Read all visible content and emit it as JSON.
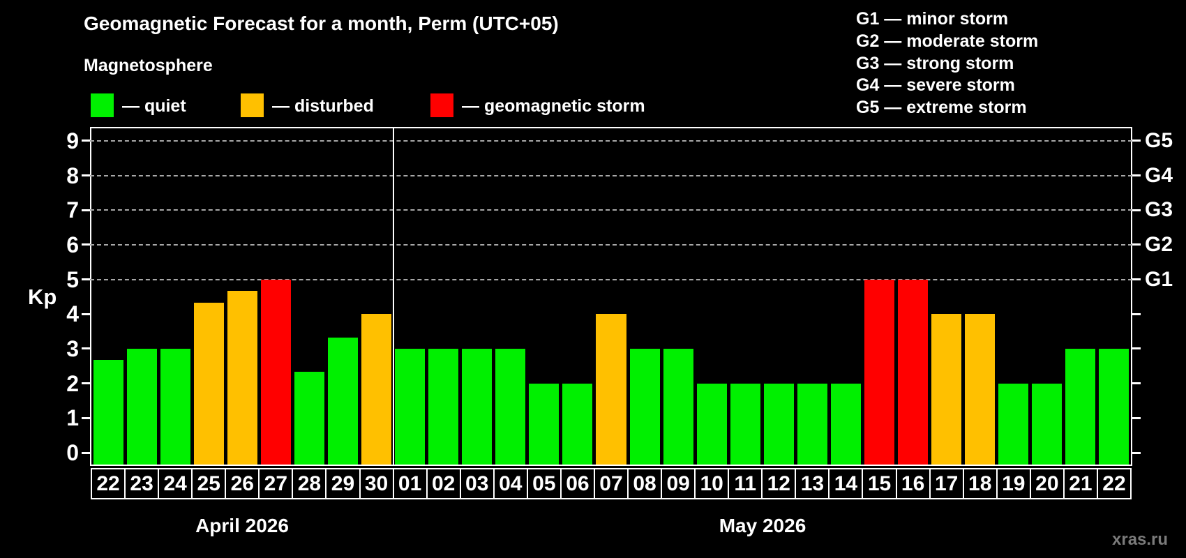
{
  "title": "Geomagnetic Forecast for a month, Perm (UTC+05)",
  "subtitle": "Magnetosphere",
  "legend": {
    "items": [
      {
        "key": "quiet",
        "label": "— quiet",
        "color": "#00f000"
      },
      {
        "key": "disturbed",
        "label": "— disturbed",
        "color": "#ffc000"
      },
      {
        "key": "storm",
        "label": "— geomagnetic storm",
        "color": "#ff0000"
      }
    ]
  },
  "storm_scale": {
    "items": [
      "G1 — minor storm",
      "G2 — moderate storm",
      "G3 — strong storm",
      "G4 — severe storm",
      "G5 — extreme storm"
    ]
  },
  "y_axis": {
    "label": "Kp",
    "ticks": [
      0,
      1,
      2,
      3,
      4,
      5,
      6,
      7,
      8,
      9
    ]
  },
  "right_axis": {
    "labels": [
      {
        "text": "G1",
        "kp": 5
      },
      {
        "text": "G2",
        "kp": 6
      },
      {
        "text": "G3",
        "kp": 7
      },
      {
        "text": "G4",
        "kp": 8
      },
      {
        "text": "G5",
        "kp": 9
      }
    ]
  },
  "watermark": "xras.ru",
  "colors": {
    "background": "#000000",
    "axis": "#ffffff",
    "grid": "#a8a8a8",
    "quiet": "#00f000",
    "disturbed": "#ffc000",
    "storm": "#ff0000",
    "watermark_text": "#7b7b7b"
  },
  "chart_data": {
    "type": "bar",
    "title": "Geomagnetic Forecast for a month, Perm (UTC+05)",
    "xlabel": "",
    "ylabel": "Kp",
    "ylim": [
      0,
      9
    ],
    "grid": "dashed horizontal at Kp 5-9 only",
    "gridlines_kp": [
      5,
      6,
      7,
      8,
      9
    ],
    "legend_position": "top-left",
    "months": [
      {
        "label": "April 2026",
        "days": [
          {
            "day": "22",
            "kp": 2.67,
            "status": "quiet"
          },
          {
            "day": "23",
            "kp": 3.0,
            "status": "quiet"
          },
          {
            "day": "24",
            "kp": 3.0,
            "status": "quiet"
          },
          {
            "day": "25",
            "kp": 4.33,
            "status": "disturbed"
          },
          {
            "day": "26",
            "kp": 4.67,
            "status": "disturbed"
          },
          {
            "day": "27",
            "kp": 5.0,
            "status": "storm"
          },
          {
            "day": "28",
            "kp": 2.33,
            "status": "quiet"
          },
          {
            "day": "29",
            "kp": 3.33,
            "status": "quiet"
          },
          {
            "day": "30",
            "kp": 4.0,
            "status": "disturbed"
          }
        ]
      },
      {
        "label": "May 2026",
        "days": [
          {
            "day": "01",
            "kp": 3.0,
            "status": "quiet"
          },
          {
            "day": "02",
            "kp": 3.0,
            "status": "quiet"
          },
          {
            "day": "03",
            "kp": 3.0,
            "status": "quiet"
          },
          {
            "day": "04",
            "kp": 3.0,
            "status": "quiet"
          },
          {
            "day": "05",
            "kp": 2.0,
            "status": "quiet"
          },
          {
            "day": "06",
            "kp": 2.0,
            "status": "quiet"
          },
          {
            "day": "07",
            "kp": 4.0,
            "status": "disturbed"
          },
          {
            "day": "08",
            "kp": 3.0,
            "status": "quiet"
          },
          {
            "day": "09",
            "kp": 3.0,
            "status": "quiet"
          },
          {
            "day": "10",
            "kp": 2.0,
            "status": "quiet"
          },
          {
            "day": "11",
            "kp": 2.0,
            "status": "quiet"
          },
          {
            "day": "12",
            "kp": 2.0,
            "status": "quiet"
          },
          {
            "day": "13",
            "kp": 2.0,
            "status": "quiet"
          },
          {
            "day": "14",
            "kp": 2.0,
            "status": "quiet"
          },
          {
            "day": "15",
            "kp": 5.0,
            "status": "storm"
          },
          {
            "day": "16",
            "kp": 5.0,
            "status": "storm"
          },
          {
            "day": "17",
            "kp": 4.0,
            "status": "disturbed"
          },
          {
            "day": "18",
            "kp": 4.0,
            "status": "disturbed"
          },
          {
            "day": "19",
            "kp": 2.0,
            "status": "quiet"
          },
          {
            "day": "20",
            "kp": 2.0,
            "status": "quiet"
          },
          {
            "day": "21",
            "kp": 3.0,
            "status": "quiet"
          },
          {
            "day": "22",
            "kp": 3.0,
            "status": "quiet"
          }
        ]
      }
    ]
  }
}
